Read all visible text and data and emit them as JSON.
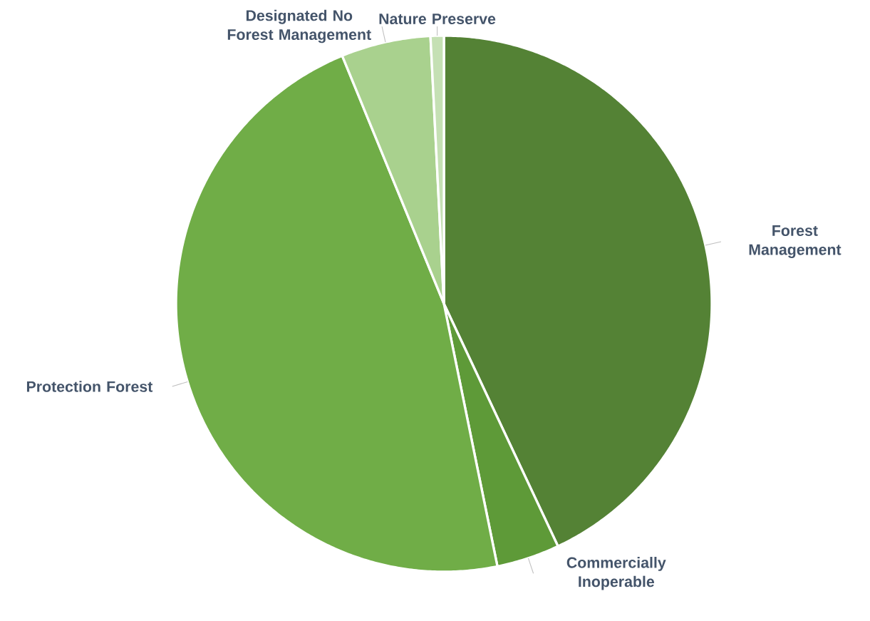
{
  "chart_data": {
    "type": "pie",
    "categories": [
      "Forest Management",
      "Commercially Inoperable",
      "Protection Forest",
      "Designated No Forest Management",
      "Nature Preserve"
    ],
    "values": [
      43,
      3.8,
      47,
      5.4,
      0.8
    ],
    "colors": [
      "#548235",
      "#5e9a38",
      "#70ad47",
      "#a9d18e",
      "#c5e0b4"
    ]
  }
}
